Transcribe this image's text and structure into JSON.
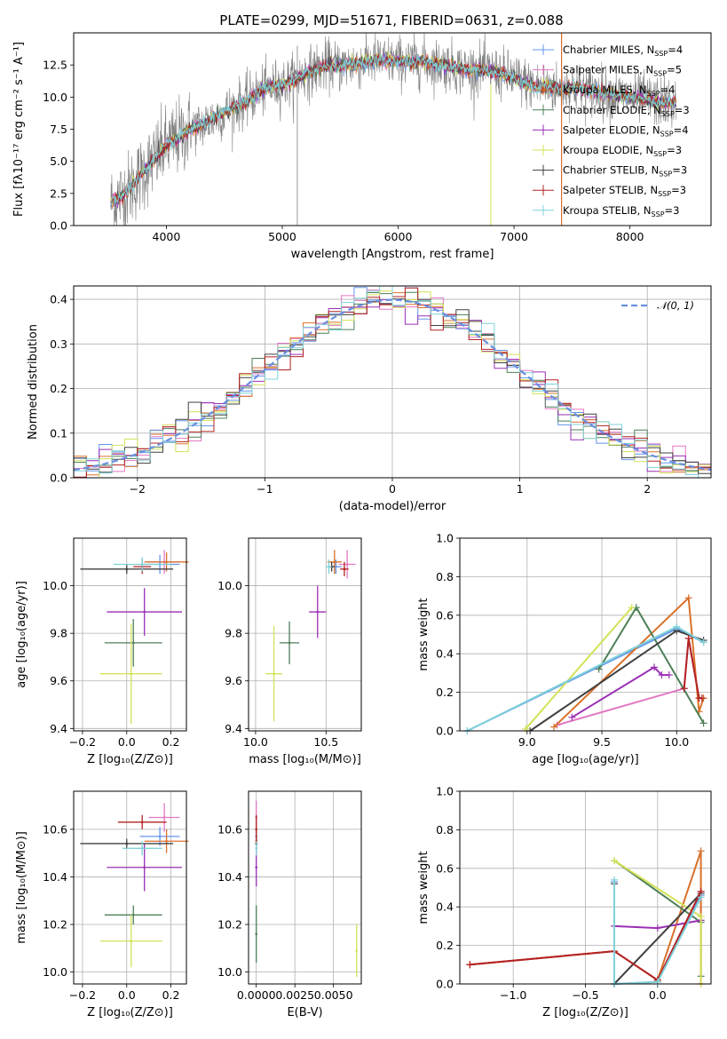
{
  "figure": {
    "title": "PLATE=0299, MJD=51671, FIBERID=0631, z=0.088"
  },
  "models": [
    {
      "name": "Chabrier MILES, N$_{SSP}$=4",
      "label_main": "Chabrier MILES, N",
      "label_sub": "SSP",
      "label_tail": "=4",
      "color": "#6495ed"
    },
    {
      "name": "Salpeter MILES, N$_{SSP}$=5",
      "label_main": "Salpeter MILES, N",
      "label_sub": "SSP",
      "label_tail": "=5",
      "color": "#e377c2"
    },
    {
      "name": "Kroupa MILES, N$_{SSP}$=4",
      "label_main": "Kroupa MILES, N",
      "label_sub": "SSP",
      "label_tail": "=4",
      "color": "#d9712b"
    },
    {
      "name": "Chabrier ELODIE, N$_{SSP}$=3",
      "label_main": "Chabrier ELODIE, N",
      "label_sub": "SSP",
      "label_tail": "=3",
      "color": "#4d7f58"
    },
    {
      "name": "Salpeter ELODIE, N$_{SSP}$=4",
      "label_main": "Salpeter ELODIE, N",
      "label_sub": "SSP",
      "label_tail": "=4",
      "color": "#9a2fb5"
    },
    {
      "name": "Kroupa ELODIE, N$_{SSP}$=3",
      "label_main": "Kroupa ELODIE, N",
      "label_sub": "SSP",
      "label_tail": "=3",
      "color": "#d4e157"
    },
    {
      "name": "Chabrier STELIB, N$_{SSP}$=3",
      "label_main": "Chabrier STELIB, N",
      "label_sub": "SSP",
      "label_tail": "=3",
      "color": "#404040"
    },
    {
      "name": "Salpeter STELIB, N$_{SSP}$=3",
      "label_main": "Salpeter STELIB, N",
      "label_sub": "SSP",
      "label_tail": "=3",
      "color": "#b22222"
    },
    {
      "name": "Kroupa STELIB, N$_{SSP}$=3",
      "label_main": "Kroupa STELIB, N",
      "label_sub": "SSP",
      "label_tail": "=3",
      "color": "#7fd1d8"
    }
  ],
  "chart_data": [
    {
      "id": "spectrum",
      "type": "line",
      "xlabel": "wavelength [Angstrom, rest frame]",
      "ylabel": "Flux [fλ10⁻¹⁷ erg cm⁻² s⁻¹ A⁻¹]",
      "xlim": [
        3200,
        8700
      ],
      "ylim": [
        0,
        15
      ],
      "xticks": [
        4000,
        5000,
        6000,
        7000,
        8000
      ],
      "yticks": [
        "0.0",
        "2.5",
        "5.0",
        "7.5",
        "10.0",
        "12.5"
      ],
      "grid": false,
      "legend": "upper right",
      "data_color": "#808080",
      "continuum": [
        [
          3520,
          1.8
        ],
        [
          3600,
          2.2
        ],
        [
          3700,
          3.0
        ],
        [
          3800,
          4.2
        ],
        [
          3900,
          5.2
        ],
        [
          4000,
          6.2
        ],
        [
          4100,
          6.8
        ],
        [
          4200,
          7.5
        ],
        [
          4300,
          7.8
        ],
        [
          4400,
          8.3
        ],
        [
          4500,
          8.8
        ],
        [
          4600,
          9.3
        ],
        [
          4700,
          9.7
        ],
        [
          4800,
          10.4
        ],
        [
          4900,
          10.8
        ],
        [
          5000,
          11.0
        ],
        [
          5100,
          11.3
        ],
        [
          5200,
          11.8
        ],
        [
          5300,
          12.2
        ],
        [
          5400,
          12.5
        ],
        [
          5500,
          12.4
        ],
        [
          5600,
          12.6
        ],
        [
          5700,
          12.7
        ],
        [
          5800,
          12.9
        ],
        [
          5900,
          12.8
        ],
        [
          6000,
          12.8
        ],
        [
          6100,
          12.7
        ],
        [
          6200,
          12.8
        ],
        [
          6300,
          12.6
        ],
        [
          6400,
          12.5
        ],
        [
          6500,
          12.3
        ],
        [
          6600,
          12.1
        ],
        [
          6700,
          12.2
        ],
        [
          6800,
          12.0
        ],
        [
          6900,
          11.8
        ],
        [
          7000,
          11.5
        ],
        [
          7100,
          11.1
        ],
        [
          7200,
          10.8
        ],
        [
          7300,
          10.8
        ],
        [
          7400,
          10.6
        ],
        [
          7500,
          10.8
        ],
        [
          7600,
          10.6
        ],
        [
          7700,
          10.5
        ],
        [
          7800,
          10.3
        ],
        [
          7900,
          10.1
        ],
        [
          8000,
          10.0
        ],
        [
          8100,
          9.9
        ],
        [
          8200,
          9.7
        ],
        [
          8300,
          9.6
        ],
        [
          8400,
          9.5
        ]
      ]
    },
    {
      "id": "residuals",
      "type": "bar",
      "xlabel": "(data-model)/error",
      "ylabel": "Normed distribution",
      "xlim": [
        -2.5,
        2.5
      ],
      "ylim": [
        0,
        0.43
      ],
      "xticks": [
        "−2",
        "−1",
        "0",
        "1",
        "2"
      ],
      "xtick_values": [
        -2,
        -1,
        0,
        1,
        2
      ],
      "yticks": [
        "0.0",
        "0.1",
        "0.2",
        "0.3",
        "0.4"
      ],
      "grid": true,
      "legend": "upper right",
      "reference": {
        "name": "N(0, 1)",
        "label_main": "𝒩(0, 1)",
        "mean": 0,
        "sigma": 1,
        "color": "#6a8fe0"
      },
      "bin_width": 0.1
    },
    {
      "id": "age-vs-z",
      "type": "scatter",
      "xlabel": "Z [log₁₀(Z/Z⊙)]",
      "ylabel": "age  [log₁₀(age/yr)]",
      "xlim": [
        -0.24,
        0.27
      ],
      "ylim": [
        9.39,
        10.2
      ],
      "xticks": [
        "−0.2",
        "0.0",
        "0.2"
      ],
      "xtick_values": [
        -0.2,
        0.0,
        0.2
      ],
      "yticks": [
        "9.4",
        "9.6",
        "9.8",
        "10.0"
      ],
      "ytick_values": [
        9.4,
        9.6,
        9.8,
        10.0
      ],
      "grid": true,
      "points": [
        {
          "model": 0,
          "x": 0.15,
          "y": 10.09,
          "xerr": 0.09,
          "yerr": 0.04
        },
        {
          "model": 1,
          "x": 0.17,
          "y": 10.1,
          "xerr": 0.07,
          "yerr": 0.05
        },
        {
          "model": 2,
          "x": 0.18,
          "y": 10.1,
          "xerr": 0.1,
          "yerr": 0.04
        },
        {
          "model": 3,
          "x": 0.03,
          "y": 9.76,
          "xerr": 0.13,
          "yerr": 0.1
        },
        {
          "model": 4,
          "x": 0.08,
          "y": 9.89,
          "xerr": 0.17,
          "yerr": 0.1
        },
        {
          "model": 5,
          "x": 0.02,
          "y": 9.63,
          "xerr": 0.14,
          "yerr": 0.21
        },
        {
          "model": 6,
          "x": 0.0,
          "y": 10.07,
          "xerr": 0.21,
          "yerr": 0.02
        },
        {
          "model": 7,
          "x": 0.07,
          "y": 10.08,
          "xerr": 0.04,
          "yerr": 0.03
        },
        {
          "model": 8,
          "x": 0.07,
          "y": 10.09,
          "xerr": 0.13,
          "yerr": 0.03
        }
      ]
    },
    {
      "id": "age-vs-mass",
      "type": "scatter",
      "xlabel": "mass [log₁₀(M/M⊙)]",
      "ylabel": "",
      "xlim": [
        9.95,
        10.75
      ],
      "ylim": [
        9.39,
        10.2
      ],
      "xticks": [
        "10.0",
        "10.5"
      ],
      "xtick_values": [
        10.0,
        10.5
      ],
      "yticks": [
        "9.4",
        "9.6",
        "9.8",
        "10.0"
      ],
      "ytick_values": [
        9.4,
        9.6,
        9.8,
        10.0
      ],
      "grid": true,
      "points": [
        {
          "model": 0,
          "x": 10.57,
          "y": 10.08,
          "xerr": 0.04,
          "yerr": 0.03
        },
        {
          "model": 1,
          "x": 10.65,
          "y": 10.09,
          "xerr": 0.06,
          "yerr": 0.06
        },
        {
          "model": 2,
          "x": 10.56,
          "y": 10.1,
          "xerr": 0.05,
          "yerr": 0.05
        },
        {
          "model": 3,
          "x": 10.24,
          "y": 9.76,
          "xerr": 0.07,
          "yerr": 0.09
        },
        {
          "model": 4,
          "x": 10.44,
          "y": 9.89,
          "xerr": 0.06,
          "yerr": 0.11
        },
        {
          "model": 5,
          "x": 10.13,
          "y": 9.63,
          "xerr": 0.06,
          "yerr": 0.2
        },
        {
          "model": 6,
          "x": 10.54,
          "y": 10.08,
          "xerr": 0.02,
          "yerr": 0.02
        },
        {
          "model": 7,
          "x": 10.63,
          "y": 10.07,
          "xerr": 0.03,
          "yerr": 0.03
        },
        {
          "model": 8,
          "x": 10.52,
          "y": 10.08,
          "xerr": 0.02,
          "yerr": 0.03
        }
      ]
    },
    {
      "id": "mass-weight-vs-age",
      "type": "line",
      "xlabel": "age  [log₁₀(age/yr)]",
      "ylabel": "mass weight",
      "xlim": [
        8.55,
        10.23
      ],
      "ylim": [
        0,
        1
      ],
      "xticks": [
        "9.0",
        "9.5",
        "10.0"
      ],
      "xtick_values": [
        9.0,
        9.5,
        10.0
      ],
      "yticks": [
        "0.0",
        "0.2",
        "0.4",
        "0.6",
        "0.8",
        "1.0"
      ],
      "ytick_values": [
        0,
        0.2,
        0.4,
        0.6,
        0.8,
        1.0
      ],
      "grid": true,
      "series": [
        {
          "model": 0,
          "points": [
            [
              8.6,
              0.0
            ],
            [
              10.0,
              0.53
            ],
            [
              10.18,
              0.46
            ]
          ]
        },
        {
          "model": 1,
          "points": [
            [
              9.2,
              0.03
            ],
            [
              10.05,
              0.22
            ],
            [
              10.08,
              0.48
            ],
            [
              10.15,
              0.17
            ],
            [
              10.17,
              0.17
            ]
          ]
        },
        {
          "model": 2,
          "points": [
            [
              9.18,
              0.02
            ],
            [
              10.08,
              0.69
            ],
            [
              10.15,
              0.1
            ],
            [
              10.18,
              0.17
            ]
          ]
        },
        {
          "model": 3,
          "points": [
            [
              9.48,
              0.32
            ],
            [
              9.73,
              0.64
            ],
            [
              10.18,
              0.04
            ]
          ]
        },
        {
          "model": 4,
          "points": [
            [
              9.3,
              0.07
            ],
            [
              9.85,
              0.33
            ],
            [
              9.9,
              0.29
            ],
            [
              9.95,
              0.29
            ]
          ]
        },
        {
          "model": 5,
          "points": [
            [
              8.99,
              0.01
            ],
            [
              9.7,
              0.64
            ]
          ]
        },
        {
          "model": 6,
          "points": [
            [
              9.02,
              0.0
            ],
            [
              10.0,
              0.52
            ],
            [
              10.18,
              0.47
            ]
          ]
        },
        {
          "model": 7,
          "points": [
            [
              10.05,
              0.22
            ],
            [
              10.08,
              0.48
            ],
            [
              10.15,
              0.17
            ],
            [
              10.17,
              0.17
            ]
          ]
        },
        {
          "model": 8,
          "points": [
            [
              8.6,
              0.0
            ],
            [
              10.0,
              0.54
            ],
            [
              10.18,
              0.46
            ]
          ]
        }
      ]
    },
    {
      "id": "mass-vs-z",
      "type": "scatter",
      "xlabel": "Z [log₁₀(Z/Z⊙)]",
      "ylabel": "mass [log₁₀(M/M⊙)]",
      "xlim": [
        -0.24,
        0.27
      ],
      "ylim": [
        9.95,
        10.76
      ],
      "xticks": [
        "−0.2",
        "0.0",
        "0.2"
      ],
      "xtick_values": [
        -0.2,
        0.0,
        0.2
      ],
      "yticks": [
        "10.0",
        "10.2",
        "10.4",
        "10.6"
      ],
      "ytick_values": [
        10.0,
        10.2,
        10.4,
        10.6
      ],
      "grid": true,
      "points": [
        {
          "model": 0,
          "x": 0.15,
          "y": 10.57,
          "xerr": 0.09,
          "yerr": 0.04
        },
        {
          "model": 1,
          "x": 0.17,
          "y": 10.65,
          "xerr": 0.07,
          "yerr": 0.06
        },
        {
          "model": 2,
          "x": 0.18,
          "y": 10.55,
          "xerr": 0.1,
          "yerr": 0.05
        },
        {
          "model": 3,
          "x": 0.03,
          "y": 10.24,
          "xerr": 0.13,
          "yerr": 0.04
        },
        {
          "model": 4,
          "x": 0.08,
          "y": 10.44,
          "xerr": 0.17,
          "yerr": 0.1
        },
        {
          "model": 5,
          "x": 0.02,
          "y": 10.13,
          "xerr": 0.14,
          "yerr": 0.11
        },
        {
          "model": 6,
          "x": 0.0,
          "y": 10.54,
          "xerr": 0.21,
          "yerr": 0.02
        },
        {
          "model": 7,
          "x": 0.07,
          "y": 10.63,
          "xerr": 0.11,
          "yerr": 0.03
        },
        {
          "model": 8,
          "x": 0.07,
          "y": 10.52,
          "xerr": 0.09,
          "yerr": 0.03
        }
      ]
    },
    {
      "id": "mass-vs-ebv",
      "type": "scatter",
      "xlabel": "E(B-V)",
      "ylabel": "",
      "xlim": [
        -0.0005,
        0.0068
      ],
      "ylim": [
        9.95,
        10.76
      ],
      "xticks": [
        "0.0000",
        "0.0025",
        "0.0050"
      ],
      "xtick_values": [
        0.0,
        0.0025,
        0.005
      ],
      "yticks": [
        "10.0",
        "10.2",
        "10.4",
        "10.6"
      ],
      "ytick_values": [
        10.0,
        10.2,
        10.4,
        10.6
      ],
      "grid": true,
      "points": [
        {
          "model": 0,
          "x": 0.0,
          "y": 10.57,
          "xerr": 0,
          "yerr": 0.05
        },
        {
          "model": 1,
          "x": 0.0,
          "y": 10.65,
          "xerr": 0,
          "yerr": 0.07
        },
        {
          "model": 2,
          "x": 0.0,
          "y": 10.55,
          "xerr": 0,
          "yerr": 0.05
        },
        {
          "model": 3,
          "x": 0.0,
          "y": 10.16,
          "xerr": 0,
          "yerr": 0.12
        },
        {
          "model": 4,
          "x": 0.0,
          "y": 10.44,
          "xerr": 0,
          "yerr": 0.08
        },
        {
          "model": 5,
          "x": 0.0065,
          "y": 10.09,
          "xerr": 0,
          "yerr": 0.11
        },
        {
          "model": 6,
          "x": 0.0,
          "y": 10.54,
          "xerr": 0,
          "yerr": 0.02
        },
        {
          "model": 7,
          "x": 0.0,
          "y": 10.6,
          "xerr": 0,
          "yerr": 0.06
        },
        {
          "model": 8,
          "x": 0.0,
          "y": 10.52,
          "xerr": 0,
          "yerr": 0.03
        }
      ]
    },
    {
      "id": "mass-weight-vs-z",
      "type": "line",
      "xlabel": "Z [log₁₀(Z/Z⊙)]",
      "ylabel": "mass weight",
      "xlim": [
        -1.37,
        0.37
      ],
      "ylim": [
        0,
        1
      ],
      "xticks": [
        "−1.0",
        "−0.5",
        "0.0"
      ],
      "xtick_values": [
        -1.0,
        -0.5,
        0.0
      ],
      "yticks": [
        "0.0",
        "0.2",
        "0.4",
        "0.6",
        "0.8",
        "1.0"
      ],
      "ytick_values": [
        0,
        0.2,
        0.4,
        0.6,
        0.8,
        1.0
      ],
      "grid": true,
      "series": [
        {
          "model": 0,
          "points": [
            [
              -0.3,
              0.53
            ],
            [
              -0.3,
              0.0
            ],
            [
              0.0,
              0.01
            ],
            [
              0.3,
              0.46
            ]
          ]
        },
        {
          "model": 1,
          "points": [
            [
              -1.3,
              0.1
            ],
            [
              -0.3,
              0.17
            ],
            [
              0.0,
              0.02
            ],
            [
              0.3,
              0.48
            ],
            [
              0.3,
              0.33
            ]
          ]
        },
        {
          "model": 2,
          "points": [
            [
              -1.3,
              0.1
            ],
            [
              -0.3,
              0.17
            ],
            [
              0.0,
              0.02
            ],
            [
              0.3,
              0.69
            ],
            [
              0.3,
              0.0
            ]
          ]
        },
        {
          "model": 3,
          "points": [
            [
              -0.3,
              0.64
            ],
            [
              0.3,
              0.32
            ],
            [
              0.3,
              0.04
            ]
          ]
        },
        {
          "model": 4,
          "points": [
            [
              -0.3,
              0.3
            ],
            [
              0.0,
              0.29
            ],
            [
              0.3,
              0.33
            ]
          ]
        },
        {
          "model": 5,
          "points": [
            [
              -0.3,
              0.64
            ],
            [
              0.3,
              0.35
            ],
            [
              0.3,
              0.0
            ]
          ]
        },
        {
          "model": 6,
          "points": [
            [
              -0.3,
              0.52
            ],
            [
              -0.3,
              0.0
            ],
            [
              0.3,
              0.47
            ]
          ]
        },
        {
          "model": 7,
          "points": [
            [
              -1.3,
              0.1
            ],
            [
              -0.3,
              0.17
            ],
            [
              0.0,
              0.02
            ],
            [
              0.3,
              0.48
            ]
          ]
        },
        {
          "model": 8,
          "points": [
            [
              -0.3,
              0.54
            ],
            [
              -0.3,
              0.0
            ],
            [
              0.0,
              0.01
            ],
            [
              0.3,
              0.45
            ]
          ]
        }
      ]
    }
  ]
}
